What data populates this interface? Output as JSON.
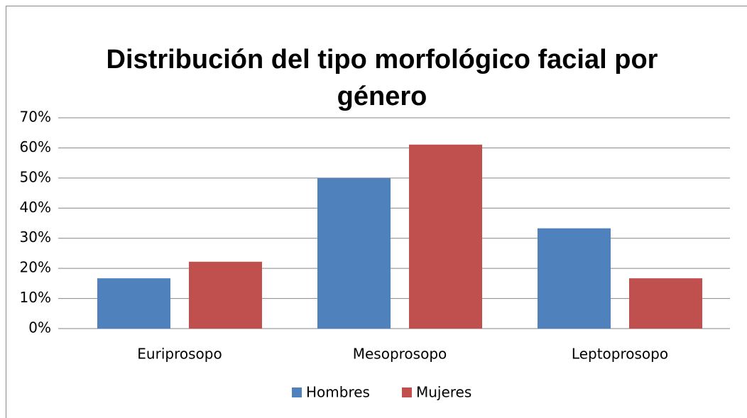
{
  "chart_data": {
    "type": "bar",
    "title": "Distribución del tipo morfológico facial por género",
    "categories": [
      "Euriprosopo",
      "Mesoprosopo",
      "Leptoprosopo"
    ],
    "series": [
      {
        "name": "Hombres",
        "color": "#4f81bd",
        "values": [
          16.7,
          50,
          33.3
        ]
      },
      {
        "name": "Mujeres",
        "color": "#c0504d",
        "values": [
          22.2,
          61.1,
          16.7
        ]
      }
    ],
    "ylim": [
      0,
      70
    ],
    "yticks": [
      {
        "value": 0,
        "label": "0%"
      },
      {
        "value": 10,
        "label": "10%"
      },
      {
        "value": 20,
        "label": "20%"
      },
      {
        "value": 30,
        "label": "30%"
      },
      {
        "value": 40,
        "label": "40%"
      },
      {
        "value": 50,
        "label": "50%"
      },
      {
        "value": 60,
        "label": "60%"
      },
      {
        "value": 70,
        "label": "70%"
      }
    ],
    "grid": true,
    "legend": "bottom"
  }
}
